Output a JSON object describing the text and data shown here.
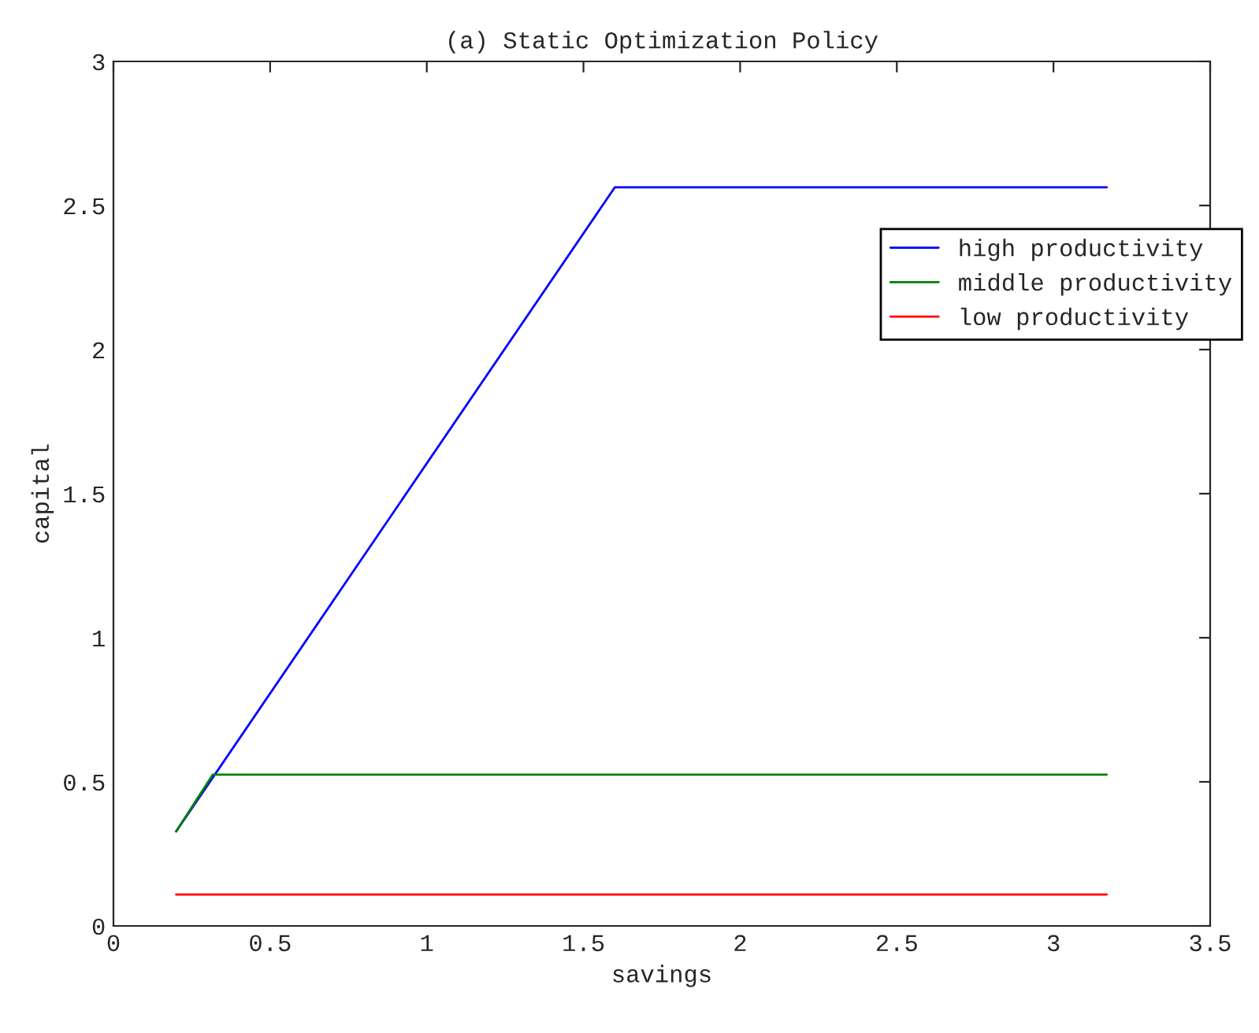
{
  "chart_data": {
    "type": "line",
    "title": "(a) Static Optimization Policy",
    "xlabel": "savings",
    "ylabel": "capital",
    "series": [
      {
        "name": "high productivity",
        "color": "#0000ff",
        "x": [
          0.2,
          1.6,
          3.17
        ],
        "values": [
          0.328,
          2.563,
          2.563
        ]
      },
      {
        "name": "middle productivity",
        "color": "#008000",
        "x": [
          0.2,
          0.317,
          3.17
        ],
        "values": [
          0.328,
          0.525,
          0.525
        ]
      },
      {
        "name": "low productivity",
        "color": "#ff0000",
        "x": [
          0.2,
          3.17
        ],
        "values": [
          0.109,
          0.109
        ]
      }
    ],
    "xlim": [
      0,
      3.5
    ],
    "xticks": [
      0,
      0.5,
      1,
      1.5,
      2,
      2.5,
      3,
      3.5
    ],
    "ylim": [
      0,
      3
    ],
    "yticks": [
      0,
      0.5,
      1,
      1.5,
      2,
      2.5,
      3
    ],
    "grid": false,
    "legend": "top right",
    "marker": "none",
    "line_style": "solid"
  }
}
